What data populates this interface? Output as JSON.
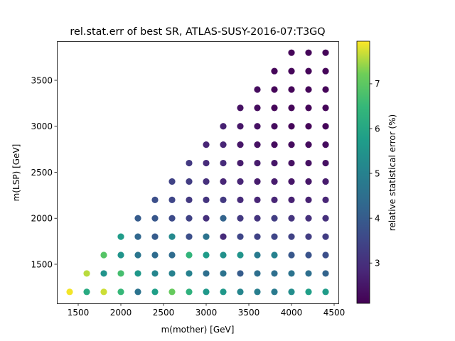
{
  "chart_data": {
    "type": "scatter",
    "title": "rel.stat.err of best SR, ATLAS-SUSY-2016-07:T3GQ",
    "xlabel": "m(mother) [GeV]",
    "ylabel": "m(LSP) [GeV]",
    "colorbar_label": "relative statistical error (%)",
    "colormap": "viridis",
    "xlim": [
      1250,
      4550
    ],
    "ylim": [
      1075,
      3925
    ],
    "clim": [
      2.1,
      7.95
    ],
    "xticks": [
      1500,
      2000,
      2500,
      3000,
      3500,
      4000,
      4500
    ],
    "yticks": [
      1500,
      2000,
      2500,
      3000,
      3500
    ],
    "cticks": [
      3,
      4,
      5,
      6,
      7
    ],
    "points": [
      {
        "x": 1400,
        "y": 1200,
        "c": 7.9
      },
      {
        "x": 1600,
        "y": 1200,
        "c": 6.1
      },
      {
        "x": 1600,
        "y": 1400,
        "c": 7.6
      },
      {
        "x": 1800,
        "y": 1200,
        "c": 7.7
      },
      {
        "x": 1800,
        "y": 1400,
        "c": 5.5
      },
      {
        "x": 1800,
        "y": 1600,
        "c": 6.9
      },
      {
        "x": 2000,
        "y": 1200,
        "c": 6.5
      },
      {
        "x": 2000,
        "y": 1400,
        "c": 6.7
      },
      {
        "x": 2000,
        "y": 1600,
        "c": 5.5
      },
      {
        "x": 2000,
        "y": 1800,
        "c": 5.7
      },
      {
        "x": 2200,
        "y": 1200,
        "c": 4.6
      },
      {
        "x": 2200,
        "y": 1400,
        "c": 5.6
      },
      {
        "x": 2200,
        "y": 1600,
        "c": 4.7
      },
      {
        "x": 2200,
        "y": 1800,
        "c": 4.3
      },
      {
        "x": 2200,
        "y": 2000,
        "c": 4.0
      },
      {
        "x": 2400,
        "y": 1200,
        "c": 5.8
      },
      {
        "x": 2400,
        "y": 1400,
        "c": 5.1
      },
      {
        "x": 2400,
        "y": 1600,
        "c": 4.4
      },
      {
        "x": 2400,
        "y": 1800,
        "c": 4.0
      },
      {
        "x": 2400,
        "y": 2000,
        "c": 3.9
      },
      {
        "x": 2400,
        "y": 2200,
        "c": 3.7
      },
      {
        "x": 2600,
        "y": 1200,
        "c": 7.1
      },
      {
        "x": 2600,
        "y": 1400,
        "c": 5.0
      },
      {
        "x": 2600,
        "y": 1600,
        "c": 4.4
      },
      {
        "x": 2600,
        "y": 1800,
        "c": 5.2
      },
      {
        "x": 2600,
        "y": 2000,
        "c": 3.6
      },
      {
        "x": 2600,
        "y": 2200,
        "c": 3.5
      },
      {
        "x": 2600,
        "y": 2400,
        "c": 3.4
      },
      {
        "x": 2800,
        "y": 1200,
        "c": 6.3
      },
      {
        "x": 2800,
        "y": 1400,
        "c": 5.0
      },
      {
        "x": 2800,
        "y": 1600,
        "c": 6.4
      },
      {
        "x": 2800,
        "y": 1800,
        "c": 3.7
      },
      {
        "x": 2800,
        "y": 2000,
        "c": 3.4
      },
      {
        "x": 2800,
        "y": 2200,
        "c": 3.2
      },
      {
        "x": 2800,
        "y": 2400,
        "c": 3.3
      },
      {
        "x": 2800,
        "y": 2600,
        "c": 3.2
      },
      {
        "x": 3000,
        "y": 1200,
        "c": 5.6
      },
      {
        "x": 3000,
        "y": 1400,
        "c": 4.5
      },
      {
        "x": 3000,
        "y": 1600,
        "c": 5.7
      },
      {
        "x": 3000,
        "y": 1800,
        "c": 4.6
      },
      {
        "x": 3000,
        "y": 2000,
        "c": 3.0
      },
      {
        "x": 3000,
        "y": 2200,
        "c": 3.1
      },
      {
        "x": 3000,
        "y": 2400,
        "c": 3.0
      },
      {
        "x": 3000,
        "y": 2600,
        "c": 2.9
      },
      {
        "x": 3000,
        "y": 2800,
        "c": 2.8
      },
      {
        "x": 3200,
        "y": 1200,
        "c": 5.6
      },
      {
        "x": 3200,
        "y": 1400,
        "c": 4.6
      },
      {
        "x": 3200,
        "y": 1600,
        "c": 5.4
      },
      {
        "x": 3200,
        "y": 1800,
        "c": 2.9
      },
      {
        "x": 3200,
        "y": 2000,
        "c": 4.2
      },
      {
        "x": 3200,
        "y": 2200,
        "c": 3.2
      },
      {
        "x": 3200,
        "y": 2400,
        "c": 2.8
      },
      {
        "x": 3200,
        "y": 2600,
        "c": 2.9
      },
      {
        "x": 3200,
        "y": 2800,
        "c": 2.8
      },
      {
        "x": 3200,
        "y": 3000,
        "c": 2.7
      },
      {
        "x": 3400,
        "y": 1200,
        "c": 5.1
      },
      {
        "x": 3400,
        "y": 1400,
        "c": 4.0
      },
      {
        "x": 3400,
        "y": 1600,
        "c": 5.5
      },
      {
        "x": 3400,
        "y": 1800,
        "c": 3.5
      },
      {
        "x": 3400,
        "y": 2000,
        "c": 3.2
      },
      {
        "x": 3400,
        "y": 2200,
        "c": 2.9
      },
      {
        "x": 3400,
        "y": 2400,
        "c": 2.8
      },
      {
        "x": 3400,
        "y": 2600,
        "c": 2.6
      },
      {
        "x": 3400,
        "y": 2800,
        "c": 2.5
      },
      {
        "x": 3400,
        "y": 3000,
        "c": 2.5
      },
      {
        "x": 3400,
        "y": 3200,
        "c": 2.4
      },
      {
        "x": 3600,
        "y": 1200,
        "c": 4.9
      },
      {
        "x": 3600,
        "y": 1400,
        "c": 4.5
      },
      {
        "x": 3600,
        "y": 1600,
        "c": 4.8
      },
      {
        "x": 3600,
        "y": 1800,
        "c": 3.4
      },
      {
        "x": 3600,
        "y": 2000,
        "c": 3.1
      },
      {
        "x": 3600,
        "y": 2200,
        "c": 2.8
      },
      {
        "x": 3600,
        "y": 2400,
        "c": 2.6
      },
      {
        "x": 3600,
        "y": 2600,
        "c": 2.6
      },
      {
        "x": 3600,
        "y": 2800,
        "c": 2.4
      },
      {
        "x": 3600,
        "y": 3000,
        "c": 2.4
      },
      {
        "x": 3600,
        "y": 3200,
        "c": 2.3
      },
      {
        "x": 3600,
        "y": 3400,
        "c": 2.3
      },
      {
        "x": 3800,
        "y": 1200,
        "c": 4.8
      },
      {
        "x": 3800,
        "y": 1400,
        "c": 4.5
      },
      {
        "x": 3800,
        "y": 1600,
        "c": 5.0
      },
      {
        "x": 3800,
        "y": 1800,
        "c": 3.5
      },
      {
        "x": 3800,
        "y": 2000,
        "c": 3.3
      },
      {
        "x": 3800,
        "y": 2200,
        "c": 2.8
      },
      {
        "x": 3800,
        "y": 2400,
        "c": 2.6
      },
      {
        "x": 3800,
        "y": 2600,
        "c": 2.5
      },
      {
        "x": 3800,
        "y": 2800,
        "c": 2.3
      },
      {
        "x": 3800,
        "y": 3000,
        "c": 2.3
      },
      {
        "x": 3800,
        "y": 3200,
        "c": 2.2
      },
      {
        "x": 3800,
        "y": 3400,
        "c": 2.2
      },
      {
        "x": 3800,
        "y": 3600,
        "c": 2.2
      },
      {
        "x": 4000,
        "y": 1200,
        "c": 5.3
      },
      {
        "x": 4000,
        "y": 1400,
        "c": 4.6
      },
      {
        "x": 4000,
        "y": 1600,
        "c": 3.9
      },
      {
        "x": 4000,
        "y": 1800,
        "c": 3.4
      },
      {
        "x": 4000,
        "y": 2000,
        "c": 3.1
      },
      {
        "x": 4000,
        "y": 2200,
        "c": 2.7
      },
      {
        "x": 4000,
        "y": 2400,
        "c": 2.5
      },
      {
        "x": 4000,
        "y": 2600,
        "c": 2.4
      },
      {
        "x": 4000,
        "y": 2800,
        "c": 2.3
      },
      {
        "x": 4000,
        "y": 3000,
        "c": 2.2
      },
      {
        "x": 4000,
        "y": 3200,
        "c": 2.2
      },
      {
        "x": 4000,
        "y": 3400,
        "c": 2.2
      },
      {
        "x": 4000,
        "y": 3600,
        "c": 2.2
      },
      {
        "x": 4000,
        "y": 3800,
        "c": 2.2
      },
      {
        "x": 4200,
        "y": 1200,
        "c": 5.8
      },
      {
        "x": 4200,
        "y": 1400,
        "c": 4.5
      },
      {
        "x": 4200,
        "y": 1600,
        "c": 3.8
      },
      {
        "x": 4200,
        "y": 1800,
        "c": 3.3
      },
      {
        "x": 4200,
        "y": 2000,
        "c": 3.0
      },
      {
        "x": 4200,
        "y": 2200,
        "c": 2.7
      },
      {
        "x": 4200,
        "y": 2400,
        "c": 2.5
      },
      {
        "x": 4200,
        "y": 2600,
        "c": 2.4
      },
      {
        "x": 4200,
        "y": 2800,
        "c": 2.3
      },
      {
        "x": 4200,
        "y": 3000,
        "c": 2.2
      },
      {
        "x": 4200,
        "y": 3200,
        "c": 2.2
      },
      {
        "x": 4200,
        "y": 3400,
        "c": 2.2
      },
      {
        "x": 4200,
        "y": 3600,
        "c": 2.2
      },
      {
        "x": 4200,
        "y": 3800,
        "c": 2.2
      },
      {
        "x": 4400,
        "y": 1200,
        "c": 5.7
      },
      {
        "x": 4400,
        "y": 1400,
        "c": 4.2
      },
      {
        "x": 4400,
        "y": 1600,
        "c": 3.7
      },
      {
        "x": 4400,
        "y": 1800,
        "c": 3.3
      },
      {
        "x": 4400,
        "y": 2000,
        "c": 3.0
      },
      {
        "x": 4400,
        "y": 2200,
        "c": 2.8
      },
      {
        "x": 4400,
        "y": 2400,
        "c": 2.6
      },
      {
        "x": 4400,
        "y": 2600,
        "c": 2.4
      },
      {
        "x": 4400,
        "y": 2800,
        "c": 2.3
      },
      {
        "x": 4400,
        "y": 3000,
        "c": 2.2
      },
      {
        "x": 4400,
        "y": 3200,
        "c": 2.2
      },
      {
        "x": 4400,
        "y": 3400,
        "c": 2.2
      },
      {
        "x": 4400,
        "y": 3600,
        "c": 2.2
      },
      {
        "x": 4400,
        "y": 3800,
        "c": 2.2
      }
    ]
  }
}
